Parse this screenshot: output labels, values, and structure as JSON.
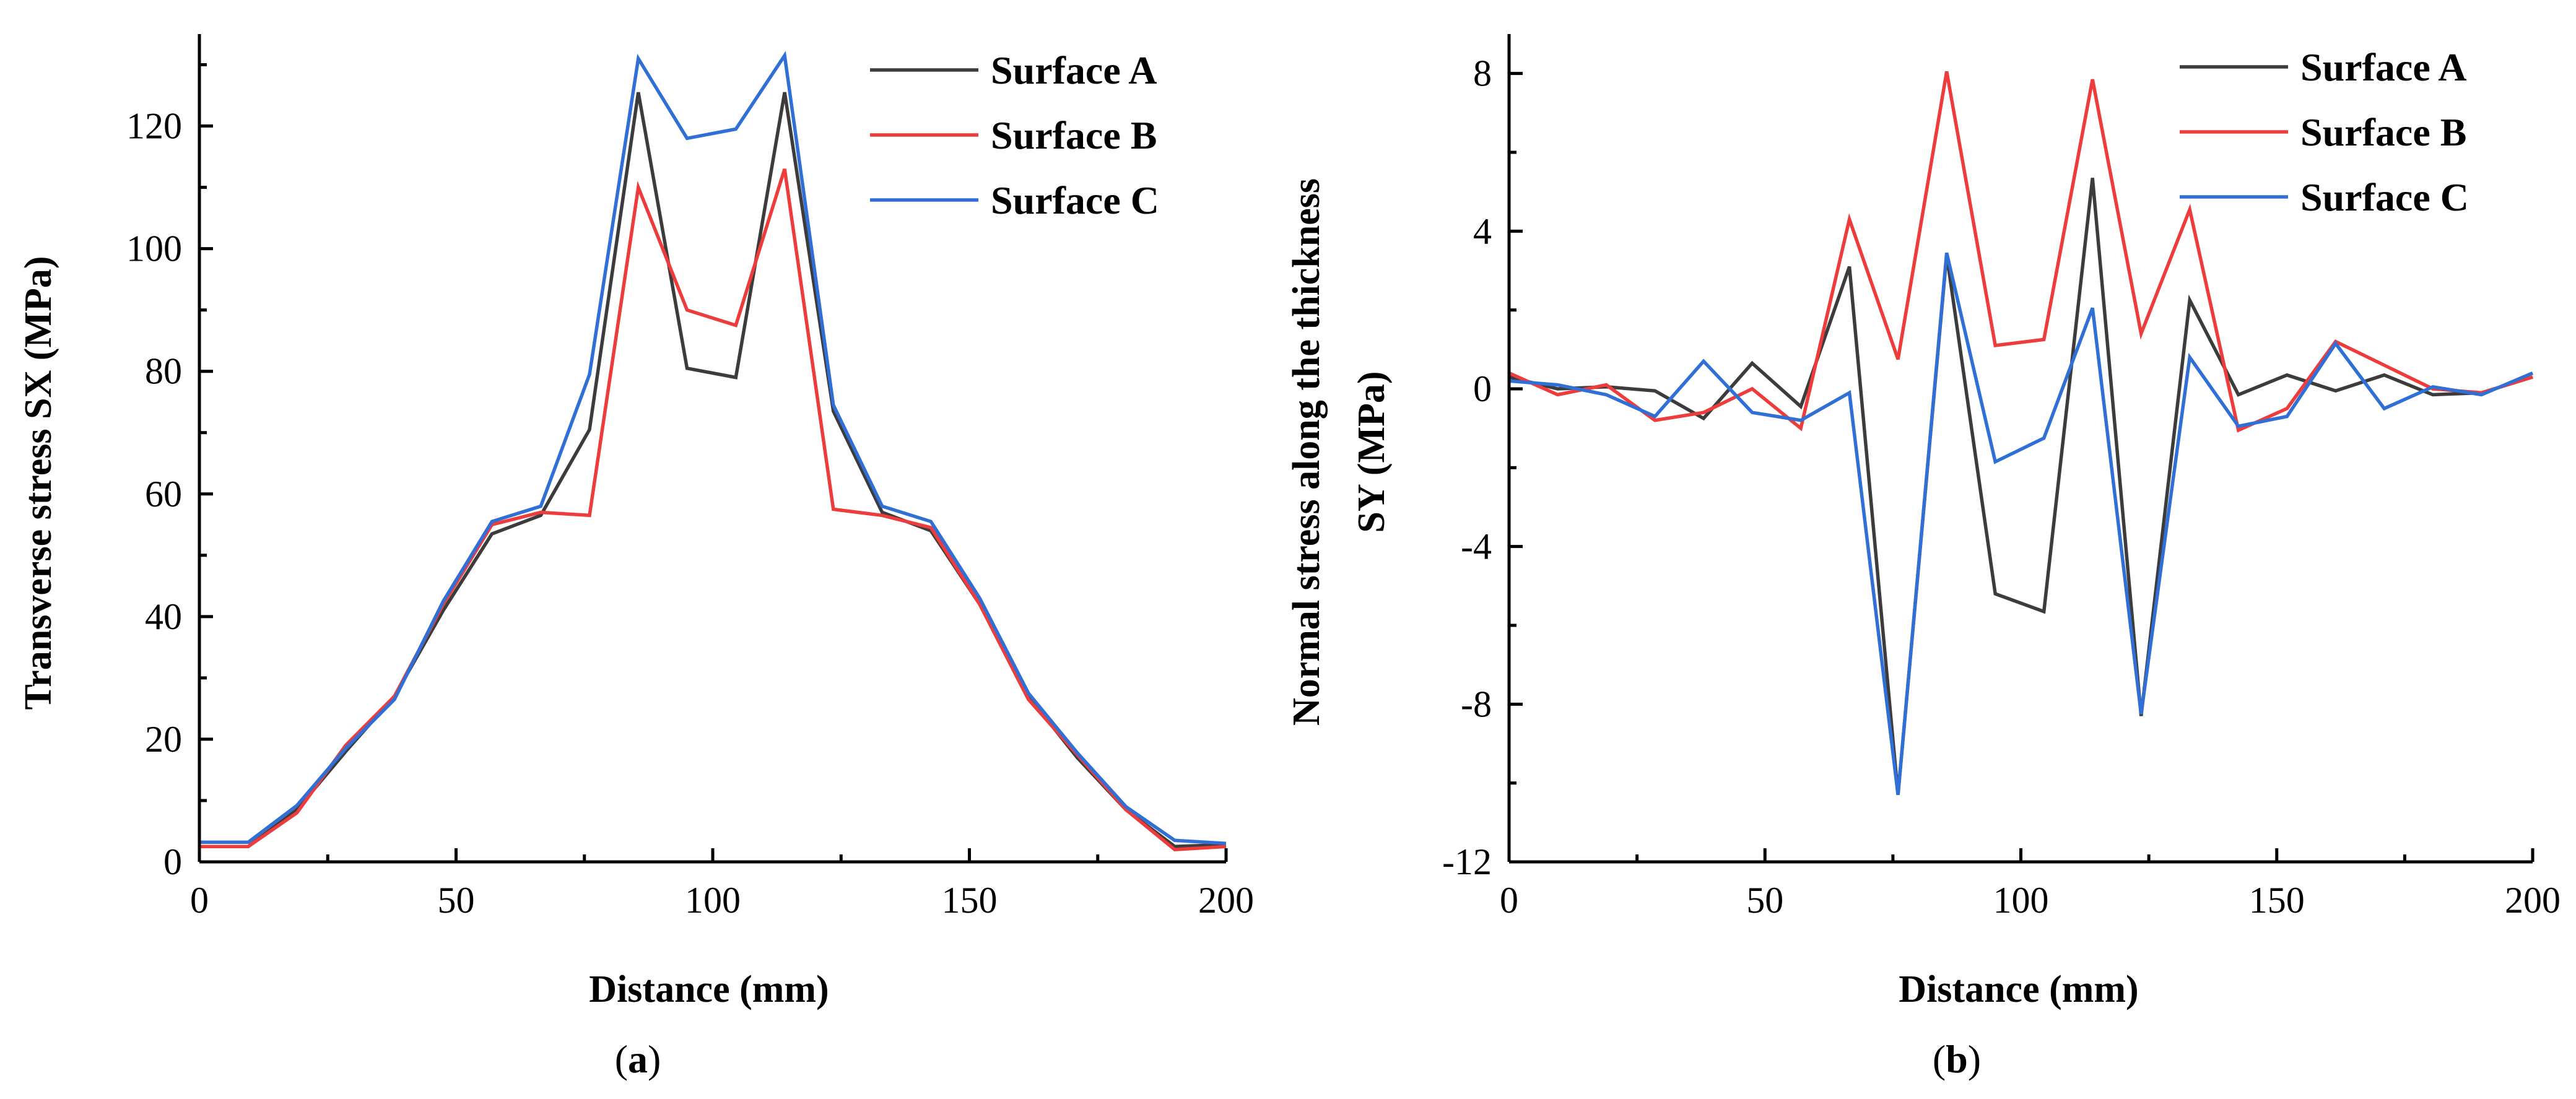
{
  "colors": {
    "surface_a": "#3c3c3c",
    "surface_b": "#ee3b3b",
    "surface_c": "#2f6fd6"
  },
  "chart_data": [
    {
      "type": "line",
      "panel_label": "(a)",
      "panel_letter": "a",
      "xlabel": "Distance (mm)",
      "ylabel": "Transverse stress SX (MPa)",
      "xlim": [
        0,
        200
      ],
      "ylim": [
        0,
        135
      ],
      "xticks": [
        0,
        50,
        100,
        150,
        200
      ],
      "yticks": [
        0,
        20,
        40,
        60,
        80,
        100,
        120
      ],
      "legend_position": "top-right",
      "grid": false,
      "x": [
        0,
        9.5,
        19,
        28.5,
        38,
        47.5,
        57,
        66.5,
        76,
        85.5,
        95,
        104.5,
        114,
        123.5,
        133,
        142.5,
        152,
        161.5,
        171,
        180.5,
        190,
        200
      ],
      "series": [
        {
          "name": "Surface A",
          "color_key": "surface_a",
          "values": [
            2.5,
            2.5,
            8.5,
            18,
            27,
            41,
            53.5,
            56.5,
            70.5,
            125.5,
            80.5,
            79,
            125.5,
            73.5,
            57,
            54,
            42,
            27,
            17,
            8.5,
            2.5,
            2.8
          ]
        },
        {
          "name": "Surface B",
          "color_key": "surface_b",
          "values": [
            2.5,
            2.5,
            8,
            19,
            27,
            42,
            55,
            57,
            56.5,
            110,
            90,
            87.5,
            113,
            57.5,
            56.5,
            54.5,
            42,
            26.5,
            17.5,
            8.5,
            2,
            2.5
          ]
        },
        {
          "name": "Surface C",
          "color_key": "surface_c",
          "values": [
            3.2,
            3.2,
            9.2,
            18.5,
            26.5,
            42.5,
            55.5,
            58,
            79.5,
            131,
            118,
            119.5,
            131.5,
            74.5,
            58,
            55.5,
            43,
            27.5,
            17.8,
            9,
            3.5,
            3
          ]
        }
      ]
    },
    {
      "type": "line",
      "panel_label": "(b)",
      "panel_letter": "b",
      "xlabel": "Distance (mm)",
      "ylabel": "Normal stress along the thickness SY (MPa)",
      "ylabel_lines": [
        "Normal stress along the thickness",
        "SY (MPa)"
      ],
      "xlim": [
        0,
        200
      ],
      "ylim": [
        -12,
        9
      ],
      "xticks": [
        0,
        50,
        100,
        150,
        200
      ],
      "yticks": [
        -12,
        -8,
        -4,
        0,
        4,
        8
      ],
      "legend_position": "top-right",
      "grid": false,
      "x": [
        0,
        9.5,
        19,
        28.5,
        38,
        47.5,
        57,
        66.5,
        76,
        85.5,
        95,
        104.5,
        114,
        123.5,
        133,
        142.5,
        152,
        161.5,
        171,
        180.5,
        190,
        200
      ],
      "series": [
        {
          "name": "Surface A",
          "color_key": "surface_a",
          "values": [
            0.3,
            0,
            0.05,
            -0.05,
            -0.75,
            0.65,
            -0.45,
            3.1,
            -10.3,
            3.4,
            -5.2,
            -5.65,
            5.35,
            -8.3,
            2.25,
            -0.15,
            0.35,
            -0.05,
            0.35,
            -0.15,
            -0.1,
            0.3
          ]
        },
        {
          "name": "Surface B",
          "color_key": "surface_b",
          "values": [
            0.4,
            -0.15,
            0.1,
            -0.8,
            -0.6,
            0,
            -1,
            4.3,
            0.75,
            8.05,
            1.1,
            1.25,
            7.85,
            1.4,
            4.55,
            -1.05,
            -0.5,
            1.2,
            0.6,
            0,
            -0.1,
            0.3
          ]
        },
        {
          "name": "Surface C",
          "color_key": "surface_c",
          "values": [
            0.2,
            0.1,
            -0.15,
            -0.7,
            0.7,
            -0.6,
            -0.8,
            -0.1,
            -10.3,
            3.45,
            -1.85,
            -1.25,
            2.05,
            -8.25,
            0.8,
            -0.95,
            -0.7,
            1.15,
            -0.5,
            0.05,
            -0.15,
            0.4
          ]
        }
      ]
    }
  ]
}
